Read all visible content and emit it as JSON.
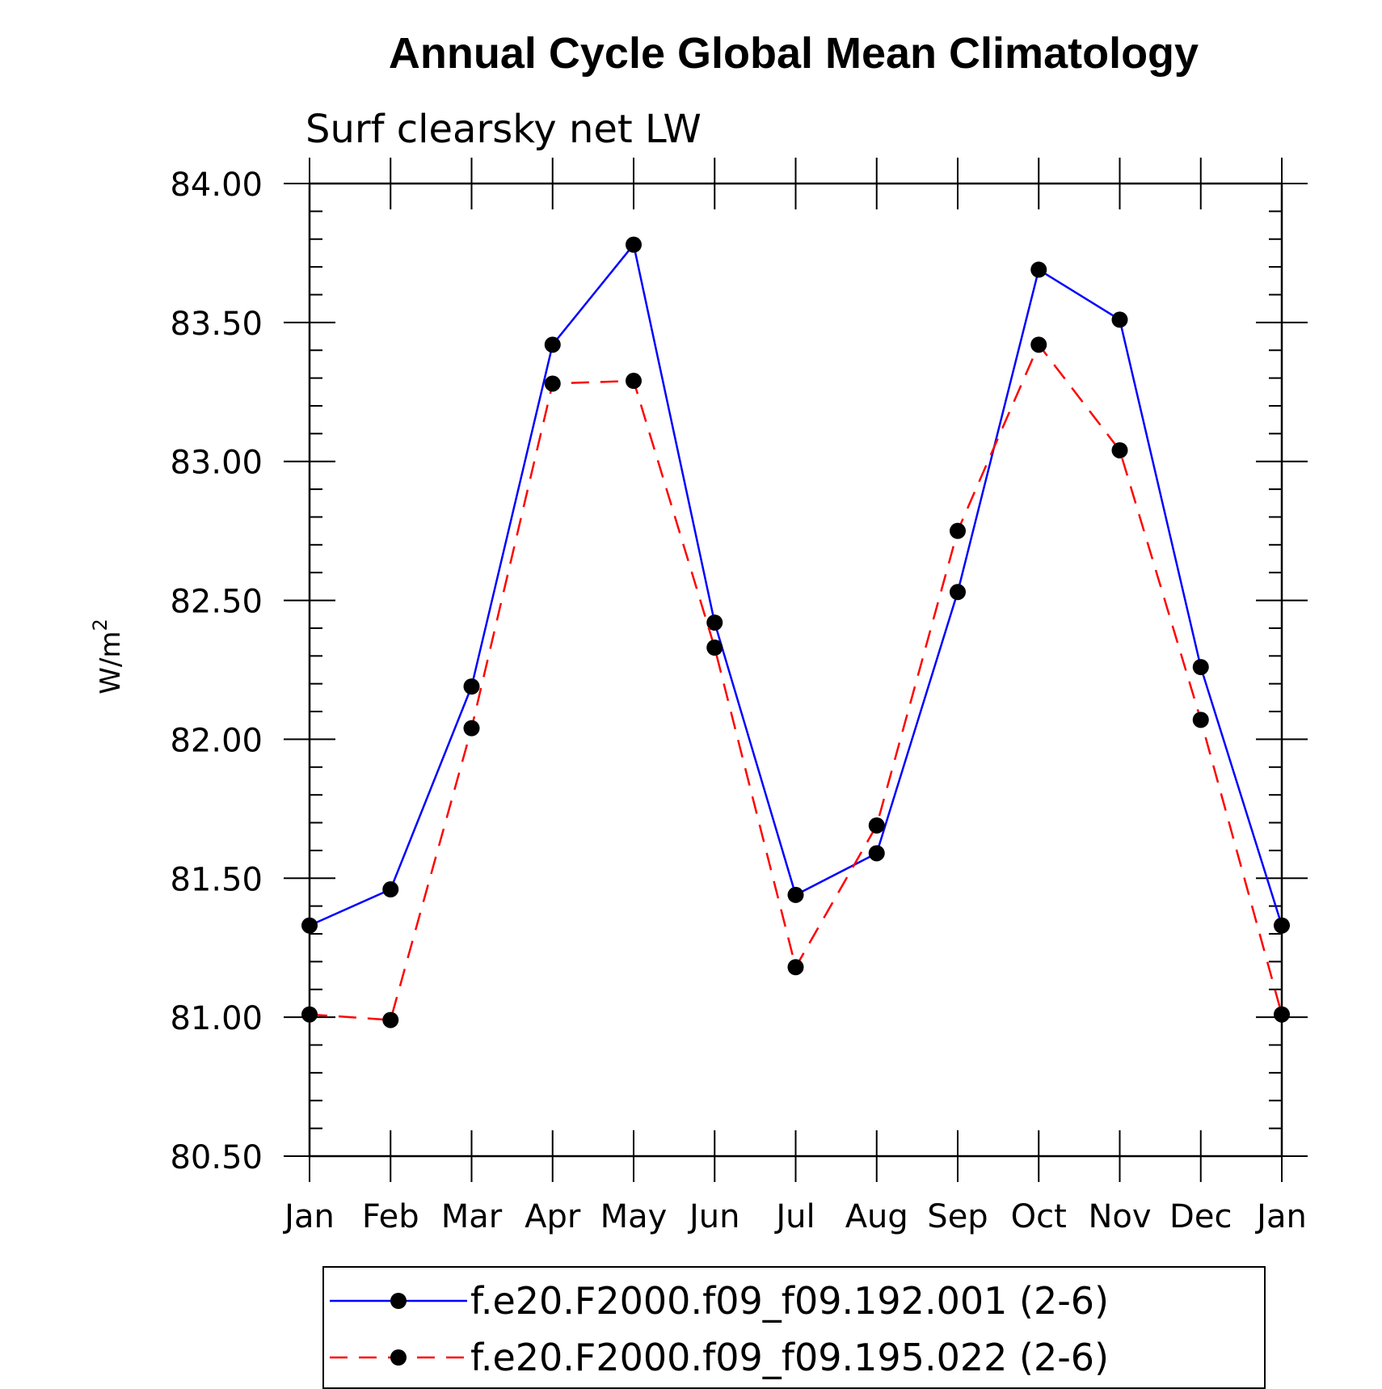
{
  "chart_data": {
    "type": "line",
    "title": "Annual Cycle Global Mean Climatology",
    "subtitle": "Surf clearsky net LW",
    "xlabel": "",
    "ylabel": "W/m",
    "ylabel_superscript": "2",
    "categories": [
      "Jan",
      "Feb",
      "Mar",
      "Apr",
      "May",
      "Jun",
      "Jul",
      "Aug",
      "Sep",
      "Oct",
      "Nov",
      "Dec",
      "Jan"
    ],
    "ylim": [
      80.5,
      84.0
    ],
    "yticks": [
      "80.50",
      "81.00",
      "81.50",
      "82.00",
      "82.50",
      "83.00",
      "83.50",
      "84.00"
    ],
    "legend_position": "bottom",
    "series": [
      {
        "name": "f.e20.F2000.f09_f09.192.001 (2-6)",
        "color": "#0000ff",
        "dash": "solid",
        "values": [
          81.33,
          81.46,
          82.19,
          83.42,
          83.78,
          82.42,
          81.44,
          81.59,
          82.53,
          83.69,
          83.51,
          82.26,
          81.33
        ]
      },
      {
        "name": "f.e20.F2000.f09_f09.195.022 (2-6)",
        "color": "#ff0000",
        "dash": "dashed",
        "values": [
          81.01,
          80.99,
          82.04,
          83.28,
          83.29,
          82.33,
          81.18,
          81.69,
          82.75,
          83.42,
          83.04,
          82.07,
          81.01
        ]
      }
    ]
  }
}
